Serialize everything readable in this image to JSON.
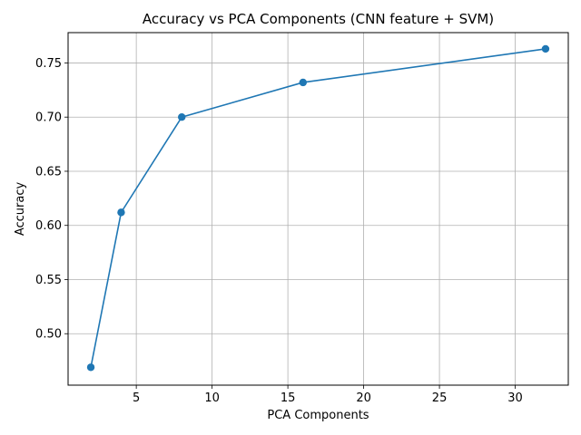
{
  "chart_data": {
    "type": "line",
    "title": "Accuracy vs PCA Components (CNN feature + SVM)",
    "xlabel": "PCA Components",
    "ylabel": "Accuracy",
    "xlim": [
      0.5,
      33.5
    ],
    "ylim": [
      0.4525,
      0.778
    ],
    "xticks": [
      5,
      10,
      15,
      20,
      25,
      30
    ],
    "yticks": [
      0.5,
      0.55,
      0.6,
      0.65,
      0.7,
      0.75
    ],
    "xtick_labels": [
      "5",
      "10",
      "15",
      "20",
      "25",
      "30"
    ],
    "ytick_labels": [
      "0.50",
      "0.55",
      "0.60",
      "0.65",
      "0.70",
      "0.75"
    ],
    "grid": true,
    "series": [
      {
        "x": [
          2,
          4,
          8,
          16,
          32
        ],
        "y": [
          0.469,
          0.612,
          0.7,
          0.732,
          0.763
        ],
        "color": "#1f77b4",
        "marker": "circle"
      }
    ]
  }
}
